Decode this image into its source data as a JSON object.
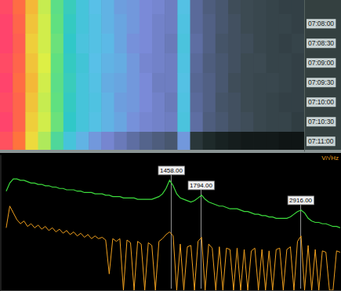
{
  "chart_data": [
    {
      "type": "heatmap",
      "x_bins": [
        -470,
        -327,
        -184,
        -41,
        102,
        245,
        388,
        531,
        674,
        817,
        960,
        1103,
        1246,
        1389,
        1532,
        1675,
        1818,
        1961,
        2104,
        2247,
        2390,
        2533,
        2676,
        2819,
        2962
      ],
      "xlim": [
        -470,
        2962
      ],
      "rows": [
        null,
        "07:08:00",
        "07:08:30",
        "07:09:00",
        "07:09:30",
        "07:10:00",
        "07:10:30",
        "07:11:00"
      ],
      "cells": [
        [
          96,
          91,
          83,
          75,
          65,
          57,
          50,
          46,
          44,
          41,
          40,
          38,
          37,
          35,
          47,
          30,
          26,
          24,
          21,
          20,
          19,
          18,
          17,
          17
        ],
        [
          97,
          92,
          82,
          76,
          66,
          56,
          50,
          47,
          44,
          42,
          40,
          38,
          36,
          35,
          48,
          30,
          27,
          24,
          22,
          20,
          19,
          18,
          18,
          17
        ],
        [
          97,
          93,
          81,
          76,
          67,
          55,
          49,
          47,
          45,
          42,
          39,
          38,
          36,
          34,
          49,
          31,
          27,
          23,
          22,
          21,
          19,
          18,
          17,
          18
        ],
        [
          96,
          92,
          82,
          77,
          66,
          56,
          51,
          46,
          44,
          43,
          40,
          37,
          36,
          35,
          48,
          30,
          26,
          24,
          22,
          20,
          20,
          18,
          18,
          17
        ],
        [
          97,
          91,
          83,
          76,
          65,
          57,
          50,
          47,
          43,
          42,
          40,
          38,
          35,
          35,
          47,
          29,
          27,
          24,
          21,
          20,
          19,
          19,
          18,
          17
        ],
        [
          96,
          92,
          82,
          75,
          66,
          56,
          50,
          48,
          44,
          41,
          40,
          38,
          36,
          34,
          48,
          30,
          27,
          23,
          22,
          20,
          19,
          18,
          17,
          17
        ],
        [
          97,
          92,
          81,
          76,
          67,
          55,
          50,
          47,
          44,
          42,
          39,
          37,
          36,
          35,
          49,
          31,
          26,
          24,
          22,
          21,
          19,
          18,
          18,
          16
        ],
        [
          95,
          90,
          80,
          73,
          62,
          50,
          44,
          40,
          37,
          34,
          31,
          28,
          26,
          24,
          40,
          14,
          10,
          8,
          7,
          6,
          6,
          6,
          5,
          5
        ]
      ],
      "zlim": [
        0,
        100
      ],
      "tick_labels": "y"
    },
    {
      "type": "line",
      "x": [
        -400,
        -360,
        -320,
        -280,
        -240,
        -200,
        -160,
        -120,
        -80,
        -40,
        0,
        40,
        80,
        120,
        160,
        200,
        240,
        280,
        320,
        360,
        400,
        440,
        480,
        520,
        560,
        600,
        640,
        680,
        720,
        760,
        800,
        840,
        880,
        920,
        960,
        1000,
        1040,
        1080,
        1120,
        1160,
        1200,
        1240,
        1280,
        1320,
        1360,
        1400,
        1440,
        1480,
        1520,
        1560,
        1600,
        1640,
        1680,
        1720,
        1760,
        1800,
        1840,
        1880,
        1920,
        1960,
        2000,
        2040,
        2080,
        2120,
        2160,
        2200,
        2240,
        2280,
        2320,
        2360,
        2400,
        2440,
        2480,
        2520,
        2560,
        2600,
        2640,
        2680,
        2720,
        2760,
        2800,
        2840,
        2880,
        2920,
        2960,
        3000,
        3040,
        3080,
        3120,
        3160,
        3200,
        3240,
        3280,
        3320,
        3360
      ],
      "xlim": [
        -470,
        3370
      ],
      "ylim": [
        0,
        100
      ],
      "tick_labels": false,
      "y_label": "V/√Hz",
      "series": [
        {
          "color": "#3ddc3d",
          "values": [
            73,
            79,
            82,
            82,
            81,
            81,
            80,
            79,
            79,
            78,
            78,
            77,
            77,
            76,
            76,
            75,
            75,
            74,
            74,
            74,
            73,
            73,
            72,
            72,
            72,
            71,
            71,
            71,
            70,
            70,
            69,
            69,
            69,
            68,
            68,
            68,
            68,
            67,
            67,
            67,
            67,
            67,
            68,
            69,
            71,
            75,
            81,
            77,
            71,
            68,
            67,
            66,
            65,
            66,
            68,
            70,
            67,
            65,
            64,
            63,
            62,
            62,
            61,
            60,
            60,
            60,
            59,
            58,
            58,
            57,
            56,
            56,
            55,
            55,
            54,
            54,
            53,
            53,
            53,
            53,
            54,
            56,
            58,
            59,
            57,
            53,
            51,
            50,
            50,
            49,
            49,
            48,
            47,
            47,
            46
          ]
        },
        {
          "color": "#f0a01e",
          "values": [
            46,
            62,
            57,
            52,
            49,
            51,
            47,
            49,
            46,
            48,
            45,
            47,
            44,
            46,
            43,
            45,
            42,
            44,
            41,
            43,
            40,
            42,
            39,
            41,
            38,
            40,
            38,
            39,
            37,
            12,
            38,
            36,
            38,
            0,
            37,
            35,
            0,
            36,
            34,
            0,
            35,
            33,
            0,
            36,
            38,
            41,
            43,
            40,
            0,
            34,
            0,
            32,
            33,
            0,
            36,
            39,
            0,
            34,
            31,
            0,
            32,
            0,
            31,
            30,
            0,
            31,
            0,
            30,
            0,
            29,
            31,
            0,
            30,
            0,
            29,
            0,
            30,
            31,
            0,
            30,
            32,
            0,
            36,
            40,
            0,
            33,
            0,
            30,
            0,
            29,
            28,
            0,
            0,
            29,
            28
          ]
        }
      ],
      "annotations": [
        {
          "x": 1458,
          "text": "1458.00"
        },
        {
          "x": 1794,
          "text": "1794.00"
        },
        {
          "x": 2916,
          "text": "2916.00"
        }
      ]
    }
  ]
}
